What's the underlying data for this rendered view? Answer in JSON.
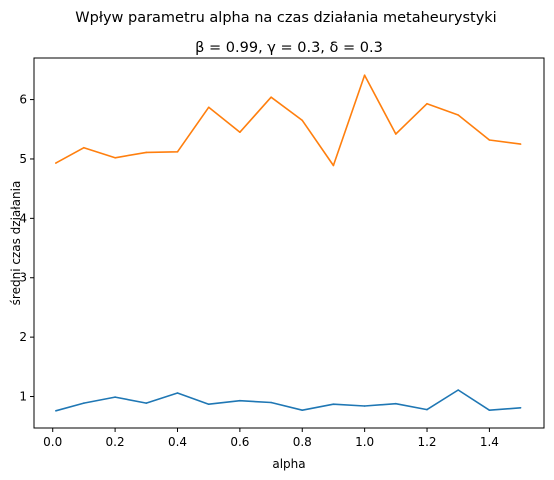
{
  "chart_data": {
    "type": "line",
    "title": "Wpływ parametru alpha na czas działania metaheurystyki",
    "subtitle": "β = 0.99, γ = 0.3, δ = 0.3",
    "xlabel": "alpha",
    "ylabel": "średni czas działania",
    "xlim": [
      -0.06,
      1.575
    ],
    "ylim": [
      0.47,
      6.7
    ],
    "xticks": [
      0.0,
      0.2,
      0.4,
      0.6,
      0.8,
      1.0,
      1.2,
      1.4
    ],
    "xtick_labels": [
      "0.0",
      "0.2",
      "0.4",
      "0.6",
      "0.8",
      "1.0",
      "1.2",
      "1.4"
    ],
    "yticks": [
      1,
      2,
      3,
      4,
      5,
      6
    ],
    "ytick_labels": [
      "1",
      "2",
      "3",
      "4",
      "5",
      "6"
    ],
    "grid": false,
    "x": [
      0.01,
      0.1,
      0.2,
      0.3,
      0.4,
      0.5,
      0.6,
      0.7,
      0.8,
      0.9,
      1.0,
      1.1,
      1.2,
      1.3,
      1.4,
      1.5
    ],
    "series": [
      {
        "color": "#1f77b4",
        "values": [
          0.76,
          0.89,
          0.99,
          0.89,
          1.06,
          0.87,
          0.93,
          0.9,
          0.77,
          0.87,
          0.84,
          0.88,
          0.78,
          1.11,
          0.77,
          0.81
        ]
      },
      {
        "color": "#ff7f0e",
        "values": [
          4.93,
          5.19,
          5.02,
          5.11,
          5.12,
          5.87,
          5.45,
          6.04,
          5.65,
          4.89,
          6.41,
          5.42,
          5.93,
          5.74,
          5.32,
          5.25
        ]
      }
    ]
  }
}
